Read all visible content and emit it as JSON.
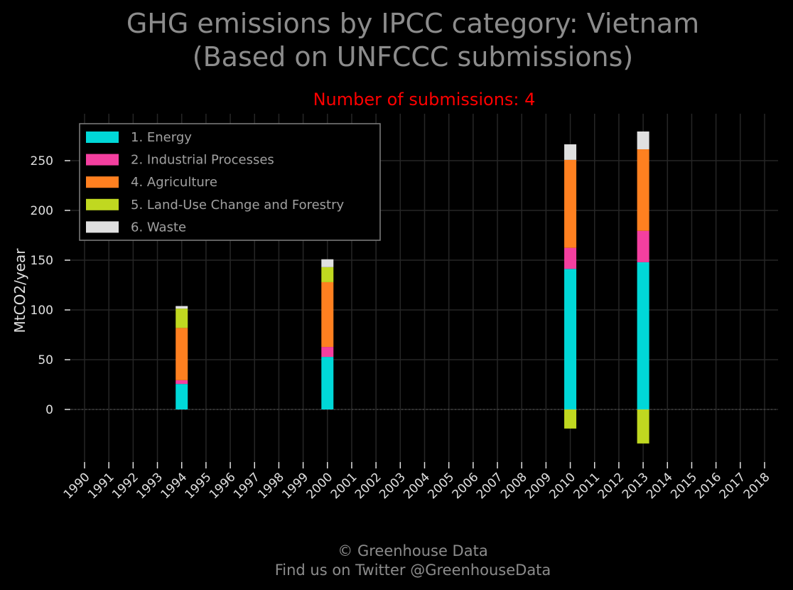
{
  "chart_data": {
    "type": "bar",
    "stacked": true,
    "title": "GHG emissions by IPCC category: Vietnam",
    "title_line2": "(Based on UNFCCC submissions)",
    "subtitle": "Number of submissions: 4",
    "xlabel": "",
    "ylabel": "MtCO2/year",
    "categories": [
      "1990",
      "1991",
      "1992",
      "1993",
      "1994",
      "1995",
      "1996",
      "1997",
      "1998",
      "1999",
      "2000",
      "2001",
      "2002",
      "2003",
      "2004",
      "2005",
      "2006",
      "2007",
      "2008",
      "2009",
      "2010",
      "2011",
      "2012",
      "2013",
      "2014",
      "2015",
      "2016",
      "2017",
      "2018"
    ],
    "ylim": [
      -52,
      295
    ],
    "yticks": [
      0,
      50,
      100,
      150,
      200,
      250
    ],
    "grid": true,
    "legend_position": "top-left",
    "series": [
      {
        "name": "1. Energy",
        "color": "#00d8d8",
        "values": [
          null,
          null,
          null,
          null,
          25.6,
          null,
          null,
          null,
          null,
          null,
          52.8,
          null,
          null,
          null,
          null,
          null,
          null,
          null,
          null,
          null,
          141.2,
          null,
          null,
          147.9,
          null,
          null,
          null,
          null,
          null
        ]
      },
      {
        "name": "2. Industrial Processes",
        "color": "#f43f9f",
        "values": [
          null,
          null,
          null,
          null,
          3.8,
          null,
          null,
          null,
          null,
          null,
          10.0,
          null,
          null,
          null,
          null,
          null,
          null,
          null,
          null,
          null,
          21.2,
          null,
          null,
          31.6,
          null,
          null,
          null,
          null,
          null
        ]
      },
      {
        "name": "4. Agriculture",
        "color": "#ff8020",
        "values": [
          null,
          null,
          null,
          null,
          52.5,
          null,
          null,
          null,
          null,
          null,
          65.1,
          null,
          null,
          null,
          null,
          null,
          null,
          null,
          null,
          null,
          88.4,
          null,
          null,
          81.9,
          null,
          null,
          null,
          null,
          null
        ]
      },
      {
        "name": "5. Land-Use Change and Forestry",
        "color": "#c0d820",
        "values": [
          null,
          null,
          null,
          null,
          19.4,
          null,
          null,
          null,
          null,
          null,
          15.1,
          null,
          null,
          null,
          null,
          null,
          null,
          null,
          null,
          null,
          -19.2,
          null,
          null,
          -34.2,
          null,
          null,
          null,
          null,
          null
        ]
      },
      {
        "name": "6. Waste",
        "color": "#e0e0e0",
        "values": [
          null,
          null,
          null,
          null,
          2.6,
          null,
          null,
          null,
          null,
          null,
          7.9,
          null,
          null,
          null,
          null,
          null,
          null,
          null,
          null,
          null,
          15.6,
          null,
          null,
          17.9,
          null,
          null,
          null,
          null,
          null
        ]
      }
    ]
  },
  "footer": {
    "line1": "© Greenhouse Data",
    "line2": "Find us on Twitter @GreenhouseData"
  }
}
